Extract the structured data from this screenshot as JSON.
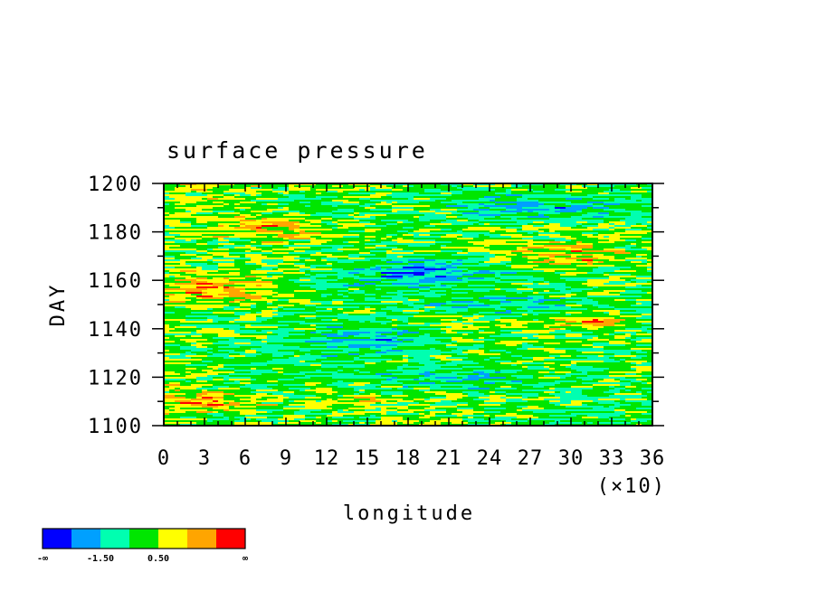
{
  "chart_data": {
    "type": "heatmap",
    "title": "surface pressure",
    "xlabel": "longitude",
    "ylabel": "DAY",
    "x_multiplier_label": "(×10)",
    "xlim": [
      0,
      36
    ],
    "ylim": [
      1100,
      1200
    ],
    "x_ticks": [
      "0",
      "3",
      "6",
      "9",
      "12",
      "15",
      "18",
      "21",
      "24",
      "27",
      "30",
      "33",
      "36"
    ],
    "y_ticks": [
      "1100",
      "1120",
      "1140",
      "1160",
      "1180",
      "1200"
    ],
    "colorbar": {
      "colors": [
        "#0000ff",
        "#00a0ff",
        "#00ffb0",
        "#00e600",
        "#ffff00",
        "#ffa500",
        "#ff0000"
      ],
      "labels": [
        "-∞",
        "-1.50",
        "0.50",
        "∞"
      ]
    }
  }
}
